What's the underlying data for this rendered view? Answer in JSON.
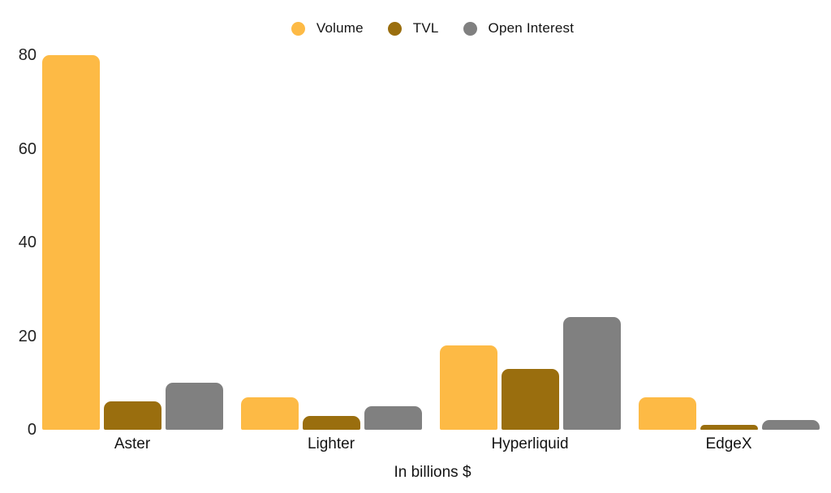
{
  "chart_data": {
    "type": "bar",
    "title": "",
    "categories": [
      "Aster",
      "Lighter",
      "Hyperliquid",
      "EdgeX"
    ],
    "series": [
      {
        "name": "Volume",
        "color": "#FDBA45",
        "values": [
          80,
          7,
          18,
          7
        ]
      },
      {
        "name": "TVL",
        "color": "#9A6E0E",
        "values": [
          6,
          3,
          13,
          1
        ]
      },
      {
        "name": "Open Interest",
        "color": "#808080",
        "values": [
          10,
          5,
          24,
          2
        ]
      }
    ],
    "xlabel": "In billions $",
    "ylabel": "",
    "ylim": [
      0,
      80
    ],
    "y_ticks": [
      0,
      20,
      40,
      60,
      80
    ],
    "grid": false,
    "legend_position": "top",
    "background": "#FFFFFF",
    "text_color": "#1E1E1E"
  }
}
